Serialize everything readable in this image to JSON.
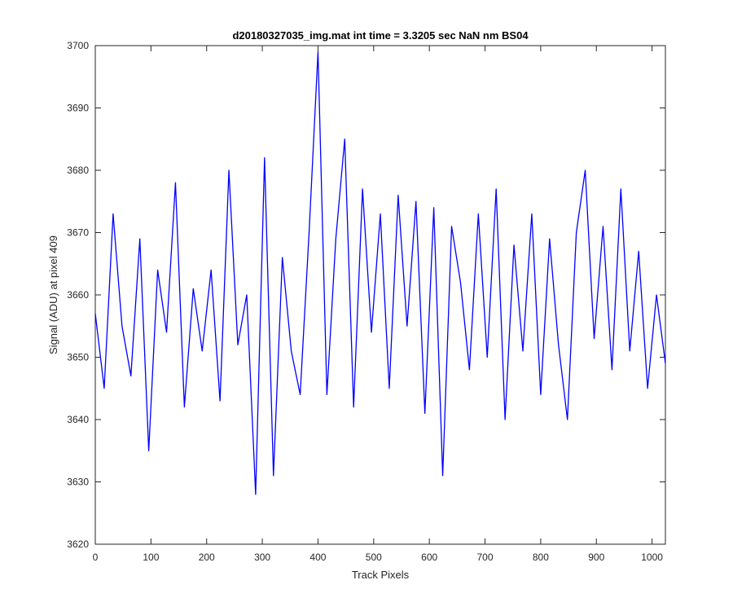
{
  "chart_data": {
    "type": "line",
    "title": "d20180327035_img.mat int time = 3.3205 sec  NaN nm BS04",
    "xlabel": "Track Pixels",
    "ylabel": "Signal (ADU) at pixel 409",
    "xlim": [
      0,
      1024
    ],
    "ylim": [
      3620,
      3700
    ],
    "xticks": [
      0,
      100,
      200,
      300,
      400,
      500,
      600,
      700,
      800,
      900,
      1000
    ],
    "yticks": [
      3620,
      3630,
      3640,
      3650,
      3660,
      3670,
      3680,
      3690,
      3700
    ],
    "grid": false,
    "line_color": "#0000ff",
    "series": [
      {
        "x": [
          0,
          16,
          32,
          48,
          64,
          80,
          96,
          112,
          128,
          144,
          160,
          176,
          192,
          208,
          224,
          240,
          256,
          272,
          288,
          304,
          320,
          336,
          352,
          368,
          384,
          400,
          416,
          432,
          448,
          464,
          480,
          496,
          512,
          528,
          544,
          560,
          576,
          592,
          608,
          624,
          640,
          656,
          672,
          688,
          704,
          720,
          736,
          752,
          768,
          784,
          800,
          816,
          832,
          848,
          864,
          880,
          896,
          912,
          928,
          944,
          960,
          976,
          992,
          1008,
          1024
        ],
        "values": [
          3657,
          3645,
          3673,
          3655,
          3647,
          3669,
          3635,
          3664,
          3654,
          3678,
          3642,
          3661,
          3651,
          3664,
          3643,
          3680,
          3652,
          3660,
          3628,
          3682,
          3631,
          3666,
          3651,
          3644,
          3670,
          3699,
          3644,
          3669,
          3685,
          3642,
          3677,
          3654,
          3673,
          3645,
          3676,
          3655,
          3675,
          3641,
          3674,
          3631,
          3671,
          3662,
          3648,
          3673,
          3650,
          3677,
          3640,
          3668,
          3651,
          3673,
          3644,
          3669,
          3652,
          3640,
          3670,
          3680,
          3653,
          3671,
          3648,
          3677,
          3651,
          3667,
          3645,
          3660,
          3649
        ]
      }
    ]
  }
}
